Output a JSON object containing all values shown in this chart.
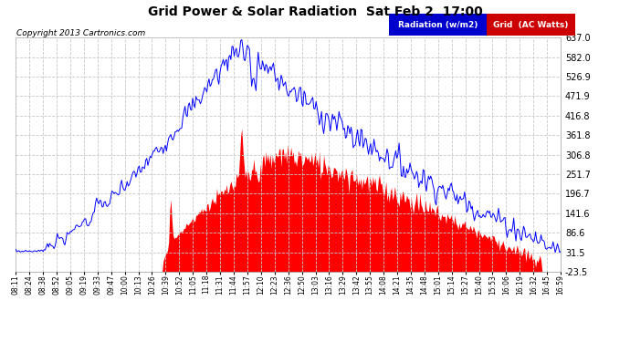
{
  "title": "Grid Power & Solar Radiation  Sat Feb 2  17:00",
  "copyright": "Copyright 2013 Cartronics.com",
  "background_color": "#ffffff",
  "plot_bg_color": "#ffffff",
  "grid_color": "#c8c8c8",
  "radiation_color": "#0000ff",
  "grid_power_color": "#ff0000",
  "y_ticks": [
    -23.5,
    31.5,
    86.6,
    141.6,
    196.7,
    251.7,
    306.8,
    361.8,
    416.8,
    471.9,
    526.9,
    582.0,
    637.0
  ],
  "y_min": -23.5,
  "y_max": 637.0,
  "legend_labels": [
    "Radiation (w/m2)",
    "Grid  (AC Watts)"
  ],
  "x_tick_labels": [
    "08:11",
    "08:24",
    "08:38",
    "08:52",
    "09:05",
    "09:19",
    "09:33",
    "09:47",
    "10:00",
    "10:13",
    "10:26",
    "10:39",
    "10:52",
    "11:05",
    "11:18",
    "11:31",
    "11:44",
    "11:57",
    "12:10",
    "12:23",
    "12:36",
    "12:50",
    "13:03",
    "13:16",
    "13:29",
    "13:42",
    "13:55",
    "14:08",
    "14:21",
    "14:35",
    "14:48",
    "15:01",
    "15:14",
    "15:27",
    "15:40",
    "15:53",
    "16:06",
    "16:19",
    "16:32",
    "16:45",
    "16:59"
  ]
}
